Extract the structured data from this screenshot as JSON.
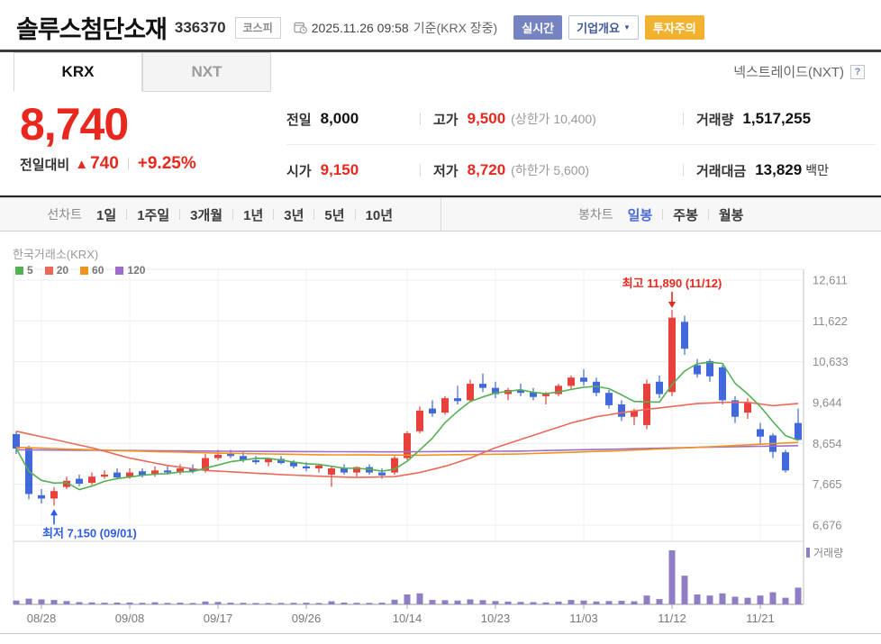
{
  "header": {
    "title": "솔루스첨단소재",
    "code": "336370",
    "market_badge": "코스피",
    "datetime": "2025.11.26 09:58",
    "datetime_suffix": "기준(KRX 장중)",
    "badges": {
      "realtime": "실시간",
      "company_overview": "기업개요",
      "caution": "투자주의"
    }
  },
  "tabs": {
    "krx": "KRX",
    "nxt": "NXT",
    "nxt_link": "넥스트레이드(NXT)"
  },
  "price": {
    "current": "8,740",
    "change_label": "전일대비",
    "change_value": "740",
    "change_pct": "+9.25%"
  },
  "summary": {
    "prev_label": "전일",
    "prev": "8,000",
    "high_label": "고가",
    "high": "9,500",
    "high_limit": "(상한가 10,400)",
    "volume_label": "거래량",
    "volume": "1,517,255",
    "open_label": "시가",
    "open": "9,150",
    "low_label": "저가",
    "low": "8,720",
    "low_limit": "(하한가 5,600)",
    "value_label": "거래대금",
    "value": "13,829",
    "value_unit": "백만"
  },
  "chart_nav": {
    "line_label": "선차트",
    "line_items": [
      "1일",
      "1주일",
      "3개월",
      "1년",
      "3년",
      "5년",
      "10년"
    ],
    "candle_label": "봉차트",
    "candle_items": [
      "일봉",
      "주봉",
      "월봉"
    ],
    "active_item": "일봉"
  },
  "icons": {
    "dropdown": "▼",
    "up_triangle": "▲",
    "help": "?"
  },
  "chart_data": {
    "type": "candlestick",
    "title": "한국거래소(KRX)",
    "legend": [
      {
        "label": "5",
        "color": "#55b054"
      },
      {
        "label": "20",
        "color": "#ea6a5a"
      },
      {
        "label": "60",
        "color": "#f0931f"
      },
      {
        "label": "120",
        "color": "#a16bc9"
      }
    ],
    "volume_legend": "거래량",
    "y_ticks": [
      "12,611",
      "11,622",
      "10,633",
      "9,644",
      "8,654",
      "7,665",
      "6,676"
    ],
    "y_tick_values": [
      12611,
      11622,
      10633,
      9644,
      8654,
      7665,
      6676
    ],
    "x_ticks": [
      {
        "i": 2,
        "label": "08/28"
      },
      {
        "i": 9,
        "label": "09/08"
      },
      {
        "i": 16,
        "label": "09/17"
      },
      {
        "i": 23,
        "label": "09/26"
      },
      {
        "i": 31,
        "label": "10/14"
      },
      {
        "i": 38,
        "label": "10/23"
      },
      {
        "i": 45,
        "label": "11/03"
      },
      {
        "i": 52,
        "label": "11/12"
      },
      {
        "i": 59,
        "label": "11/21"
      }
    ],
    "annotations": {
      "max": {
        "label": "최고 11,890 (11/12)",
        "index": 52,
        "value": 11890
      },
      "min": {
        "label": "최저 7,150 (09/01)",
        "index": 3,
        "value": 7150
      }
    },
    "colors": {
      "up": "#e8403a",
      "down": "#4169d9",
      "ann_max": "#e8281e",
      "ann_min": "#2e5ce6",
      "ma5": "#55b054",
      "ma20": "#ea6a5a",
      "ma60": "#f0931f",
      "ma120": "#a16bc9",
      "volume": "#8f7ec4",
      "grid": "#ececec",
      "vgrid": "#f0f0f0",
      "axis_label": "#8c8c8c"
    },
    "candles": [
      [
        8880,
        8950,
        8400,
        8530,
        350
      ],
      [
        8550,
        8600,
        7300,
        7430,
        520
      ],
      [
        7400,
        7550,
        7200,
        7320,
        450
      ],
      [
        7320,
        7600,
        7150,
        7500,
        400
      ],
      [
        7600,
        7850,
        7550,
        7750,
        300
      ],
      [
        7800,
        7900,
        7620,
        7680,
        200
      ],
      [
        7700,
        7950,
        7650,
        7850,
        180
      ],
      [
        7850,
        8000,
        7800,
        7900,
        150
      ],
      [
        7950,
        8050,
        7780,
        7830,
        160
      ],
      [
        7850,
        8050,
        7800,
        7950,
        170
      ],
      [
        7980,
        8050,
        7830,
        7880,
        140
      ],
      [
        7900,
        8100,
        7850,
        8000,
        190
      ],
      [
        8000,
        8100,
        7900,
        7950,
        130
      ],
      [
        7950,
        8150,
        7900,
        8050,
        150
      ],
      [
        8050,
        8150,
        7930,
        7980,
        120
      ],
      [
        8000,
        8400,
        7950,
        8300,
        260
      ],
      [
        8300,
        8500,
        8250,
        8380,
        220
      ],
      [
        8400,
        8500,
        8300,
        8350,
        150
      ],
      [
        8350,
        8450,
        8200,
        8250,
        140
      ],
      [
        8250,
        8350,
        8150,
        8200,
        120
      ],
      [
        8200,
        8300,
        8100,
        8280,
        110
      ],
      [
        8280,
        8350,
        8150,
        8180,
        130
      ],
      [
        8200,
        8250,
        8050,
        8100,
        140
      ],
      [
        8100,
        8200,
        7980,
        8050,
        150
      ],
      [
        8050,
        8150,
        7950,
        8120,
        120
      ],
      [
        7900,
        8100,
        7600,
        8050,
        280
      ],
      [
        8050,
        8150,
        7900,
        7950,
        160
      ],
      [
        7950,
        8100,
        7850,
        8080,
        140
      ],
      [
        8080,
        8150,
        7900,
        7950,
        130
      ],
      [
        7950,
        8050,
        7800,
        7880,
        150
      ],
      [
        7950,
        8350,
        7900,
        8300,
        420
      ],
      [
        8300,
        8950,
        8250,
        8900,
        900
      ],
      [
        8950,
        9550,
        8900,
        9450,
        1000
      ],
      [
        9500,
        9700,
        9300,
        9380,
        400
      ],
      [
        9400,
        9800,
        9350,
        9750,
        380
      ],
      [
        9750,
        10050,
        9600,
        9680,
        350
      ],
      [
        9700,
        10200,
        9650,
        10100,
        450
      ],
      [
        10100,
        10350,
        9900,
        10000,
        380
      ],
      [
        10000,
        10150,
        9750,
        9850,
        300
      ],
      [
        9850,
        10000,
        9700,
        9950,
        250
      ],
      [
        9950,
        10100,
        9800,
        9880,
        220
      ],
      [
        9900,
        10000,
        9700,
        9780,
        200
      ],
      [
        9800,
        9900,
        9600,
        9850,
        180
      ],
      [
        9850,
        10100,
        9800,
        10050,
        250
      ],
      [
        10050,
        10300,
        9950,
        10250,
        400
      ],
      [
        10250,
        10450,
        10050,
        10150,
        350
      ],
      [
        10150,
        10250,
        9800,
        9880,
        260
      ],
      [
        9880,
        9950,
        9500,
        9580,
        300
      ],
      [
        9600,
        9700,
        9200,
        9300,
        320
      ],
      [
        9300,
        9500,
        9100,
        9450,
        280
      ],
      [
        9100,
        10200,
        9000,
        10100,
        800
      ],
      [
        10150,
        10300,
        9750,
        9850,
        480
      ],
      [
        9900,
        11890,
        9800,
        11700,
        4900
      ],
      [
        11600,
        11750,
        10800,
        10950,
        2600
      ],
      [
        10550,
        10700,
        10250,
        10330,
        900
      ],
      [
        10650,
        10700,
        10150,
        10280,
        800
      ],
      [
        10500,
        10550,
        9600,
        9700,
        1000
      ],
      [
        9700,
        9800,
        9150,
        9300,
        700
      ],
      [
        9400,
        9750,
        9250,
        9650,
        600
      ],
      [
        9000,
        9150,
        8650,
        8820,
        800
      ],
      [
        8850,
        8900,
        8300,
        8450,
        1100
      ],
      [
        8440,
        8500,
        7950,
        8000,
        600
      ],
      [
        9150,
        9500,
        8720,
        8740,
        1517
      ]
    ],
    "ma20": [
      [
        0,
        8950
      ],
      [
        3,
        8750
      ],
      [
        6,
        8550
      ],
      [
        9,
        8300
      ],
      [
        12,
        8120
      ],
      [
        15,
        8000
      ],
      [
        18,
        7950
      ],
      [
        21,
        7900
      ],
      [
        24,
        7860
      ],
      [
        27,
        7830
      ],
      [
        30,
        7850
      ],
      [
        32,
        7950
      ],
      [
        34,
        8100
      ],
      [
        36,
        8300
      ],
      [
        38,
        8550
      ],
      [
        40,
        8750
      ],
      [
        42,
        8950
      ],
      [
        44,
        9150
      ],
      [
        46,
        9300
      ],
      [
        48,
        9400
      ],
      [
        50,
        9480
      ],
      [
        52,
        9550
      ],
      [
        54,
        9620
      ],
      [
        56,
        9650
      ],
      [
        58,
        9650
      ],
      [
        60,
        9570
      ],
      [
        62,
        9620
      ]
    ],
    "ma60": [
      [
        0,
        8560
      ],
      [
        8,
        8480
      ],
      [
        16,
        8420
      ],
      [
        24,
        8380
      ],
      [
        32,
        8370
      ],
      [
        40,
        8400
      ],
      [
        48,
        8480
      ],
      [
        54,
        8560
      ],
      [
        58,
        8620
      ],
      [
        62,
        8680
      ]
    ],
    "ma120": [
      [
        0,
        8500
      ],
      [
        10,
        8480
      ],
      [
        20,
        8460
      ],
      [
        30,
        8450
      ],
      [
        40,
        8470
      ],
      [
        48,
        8520
      ],
      [
        54,
        8560
      ],
      [
        62,
        8600
      ]
    ]
  }
}
